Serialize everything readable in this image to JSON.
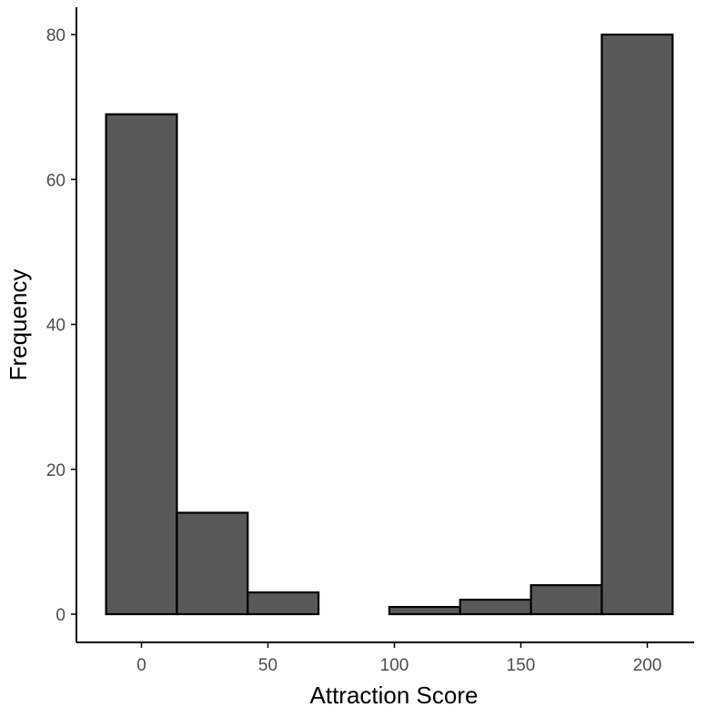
{
  "chart_data": {
    "type": "bar",
    "subtype": "histogram",
    "title": "",
    "xlabel": "Attraction Score",
    "ylabel": "Frequency",
    "bin_width": 28,
    "bins": [
      {
        "x_start": -14,
        "x_end": 14,
        "value": 69
      },
      {
        "x_start": 14,
        "x_end": 42,
        "value": 14
      },
      {
        "x_start": 42,
        "x_end": 70,
        "value": 3
      },
      {
        "x_start": 70,
        "x_end": 98,
        "value": 0
      },
      {
        "x_start": 98,
        "x_end": 126,
        "value": 1
      },
      {
        "x_start": 126,
        "x_end": 154,
        "value": 2
      },
      {
        "x_start": 154,
        "x_end": 182,
        "value": 4
      },
      {
        "x_start": 182,
        "x_end": 210,
        "value": 80
      }
    ],
    "xlim": [
      -19,
      210
    ],
    "ylim": [
      -4,
      84
    ],
    "x_ticks": [
      0,
      50,
      100,
      150,
      200
    ],
    "x_tick_labels": [
      "0",
      "50",
      "100",
      "150",
      "200"
    ],
    "y_ticks": [
      0,
      20,
      40,
      60,
      80
    ],
    "y_tick_labels": [
      "0",
      "20",
      "40",
      "60",
      "80"
    ],
    "grid": false,
    "legend": "none",
    "colors": {
      "bar_fill": "#595959",
      "bar_stroke": "#000000",
      "axis": "#000000",
      "tick_label": "#4d4d4d"
    }
  }
}
